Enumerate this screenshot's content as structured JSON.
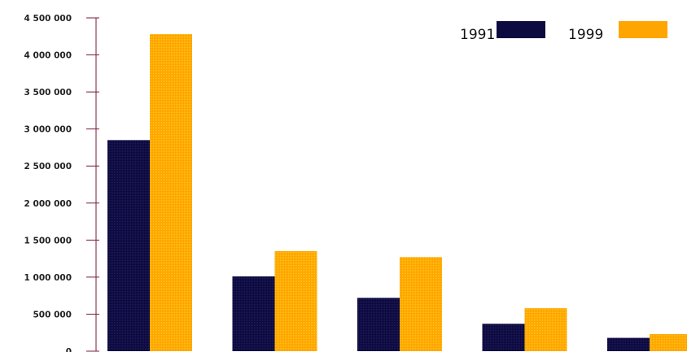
{
  "chart_data": {
    "type": "bar",
    "title": "",
    "xlabel": "",
    "ylabel": "",
    "categories": [
      "",
      "",
      "",
      "",
      ""
    ],
    "series": [
      {
        "name": "1991",
        "color": "#0c0a3e",
        "values": [
          2850000,
          1010000,
          720000,
          370000,
          180000
        ]
      },
      {
        "name": "1999",
        "color": "#ffa500",
        "values": [
          4280000,
          1350000,
          1270000,
          580000,
          230000
        ]
      }
    ],
    "ylim": [
      0,
      4500000
    ],
    "yticks": [
      0,
      500000,
      1000000,
      1500000,
      2000000,
      2500000,
      3000000,
      3500000,
      4000000,
      4500000
    ],
    "ytick_labels": [
      "0",
      "500 000",
      "1 000 000",
      "1 500 000",
      "2 000 000",
      "2 500 000",
      "3 000 000",
      "3 500 000",
      "4 000 000",
      "4 500 000"
    ],
    "grid": false,
    "legend_position": "top-right",
    "axis_color": "#7a1a3a"
  }
}
